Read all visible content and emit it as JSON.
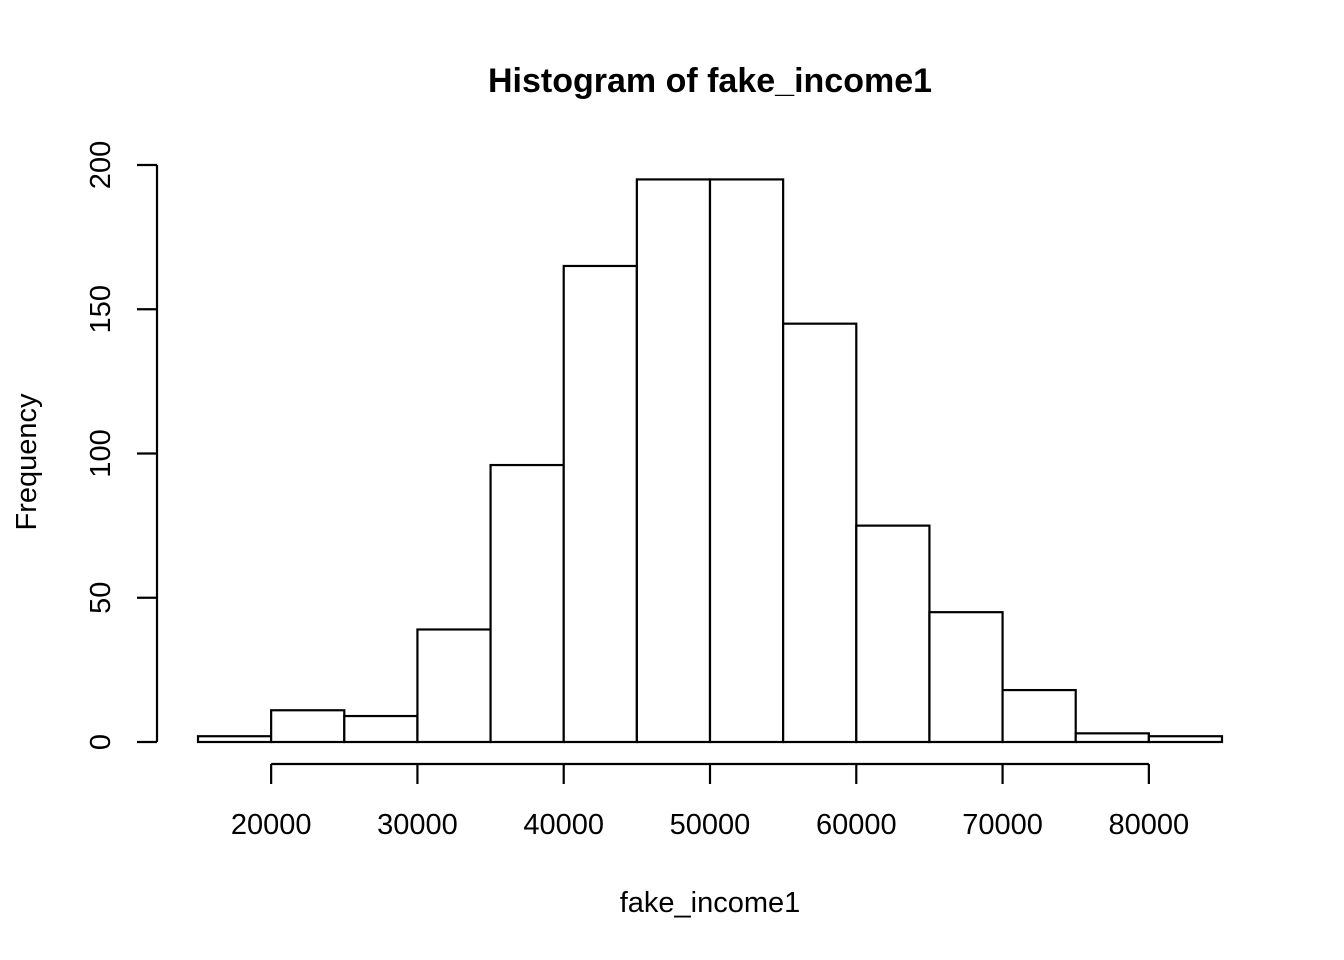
{
  "chart_data": {
    "type": "bar",
    "title": "Histogram of fake_income1",
    "xlabel": "fake_income1",
    "ylabel": "Frequency",
    "bin_width": 5000,
    "bins": [
      {
        "start": 15000,
        "end": 20000,
        "count": 2
      },
      {
        "start": 20000,
        "end": 25000,
        "count": 11
      },
      {
        "start": 25000,
        "end": 30000,
        "count": 9
      },
      {
        "start": 30000,
        "end": 35000,
        "count": 39
      },
      {
        "start": 35000,
        "end": 40000,
        "count": 96
      },
      {
        "start": 40000,
        "end": 45000,
        "count": 165
      },
      {
        "start": 45000,
        "end": 50000,
        "count": 195
      },
      {
        "start": 50000,
        "end": 55000,
        "count": 195
      },
      {
        "start": 55000,
        "end": 60000,
        "count": 145
      },
      {
        "start": 60000,
        "end": 65000,
        "count": 75
      },
      {
        "start": 65000,
        "end": 70000,
        "count": 45
      },
      {
        "start": 70000,
        "end": 75000,
        "count": 18
      },
      {
        "start": 75000,
        "end": 80000,
        "count": 3
      },
      {
        "start": 80000,
        "end": 85000,
        "count": 2
      }
    ],
    "xlim": [
      15000,
      85000
    ],
    "ylim": [
      0,
      200
    ],
    "x_ticks": [
      20000,
      30000,
      40000,
      50000,
      60000,
      70000,
      80000
    ],
    "x_tick_labels": [
      "20000",
      "30000",
      "40000",
      "50000",
      "60000",
      "70000",
      "80000"
    ],
    "y_ticks": [
      0,
      50,
      100,
      150,
      200
    ],
    "y_tick_labels": [
      "0",
      "50",
      "100",
      "150",
      "200"
    ],
    "grid": false,
    "legend": "none",
    "bar_fill": "#ffffff",
    "bar_stroke": "#000000"
  }
}
